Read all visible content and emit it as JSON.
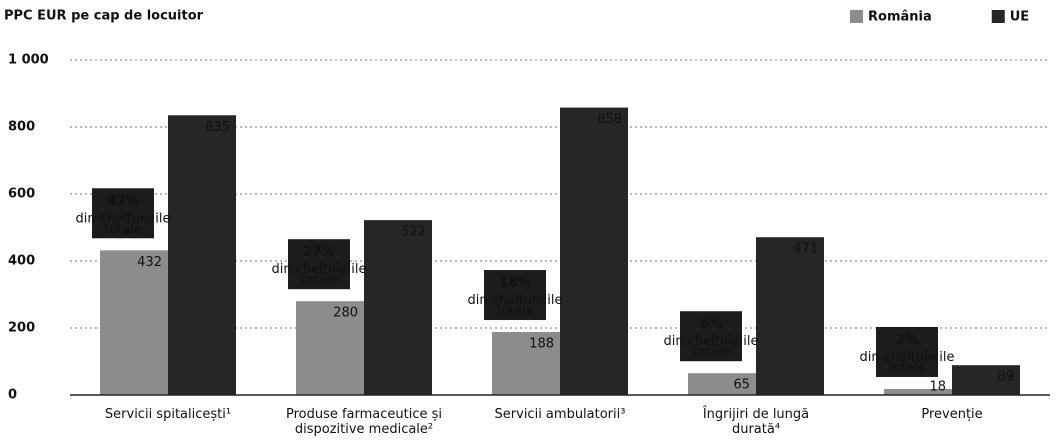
{
  "chart_data": {
    "type": "bar",
    "y_axis_title": "PPC EUR pe cap de locuitor",
    "categories": [
      "Servicii spitalicești¹",
      "Produse farmaceutice și dispozitive medicale²",
      "Servicii ambulatorii³",
      "Îngrijiri de lungă durată⁴",
      "Prevenție"
    ],
    "series": [
      {
        "name": "România",
        "color": "#8c8c8c",
        "values": [
          432,
          280,
          188,
          65,
          18
        ]
      },
      {
        "name": "UE",
        "color": "#262626",
        "values": [
          835,
          522,
          858,
          471,
          89
        ]
      }
    ],
    "annotations": [
      {
        "share": "42%",
        "text": "din cheltuielile totale"
      },
      {
        "share": "27%",
        "text": "din cheltuielile totale"
      },
      {
        "share": "18%",
        "text": "din cheltuielile totale"
      },
      {
        "share": "6%",
        "text": "din cheltuielile totale"
      },
      {
        "share": "2%",
        "text": "din cheltuielile totale"
      }
    ],
    "ylim": [
      0,
      1000
    ],
    "yticks": [
      0,
      200,
      400,
      600,
      800,
      {
        "value": 1000,
        "label": "1 000"
      }
    ],
    "grid": true,
    "legend": "top-right"
  }
}
